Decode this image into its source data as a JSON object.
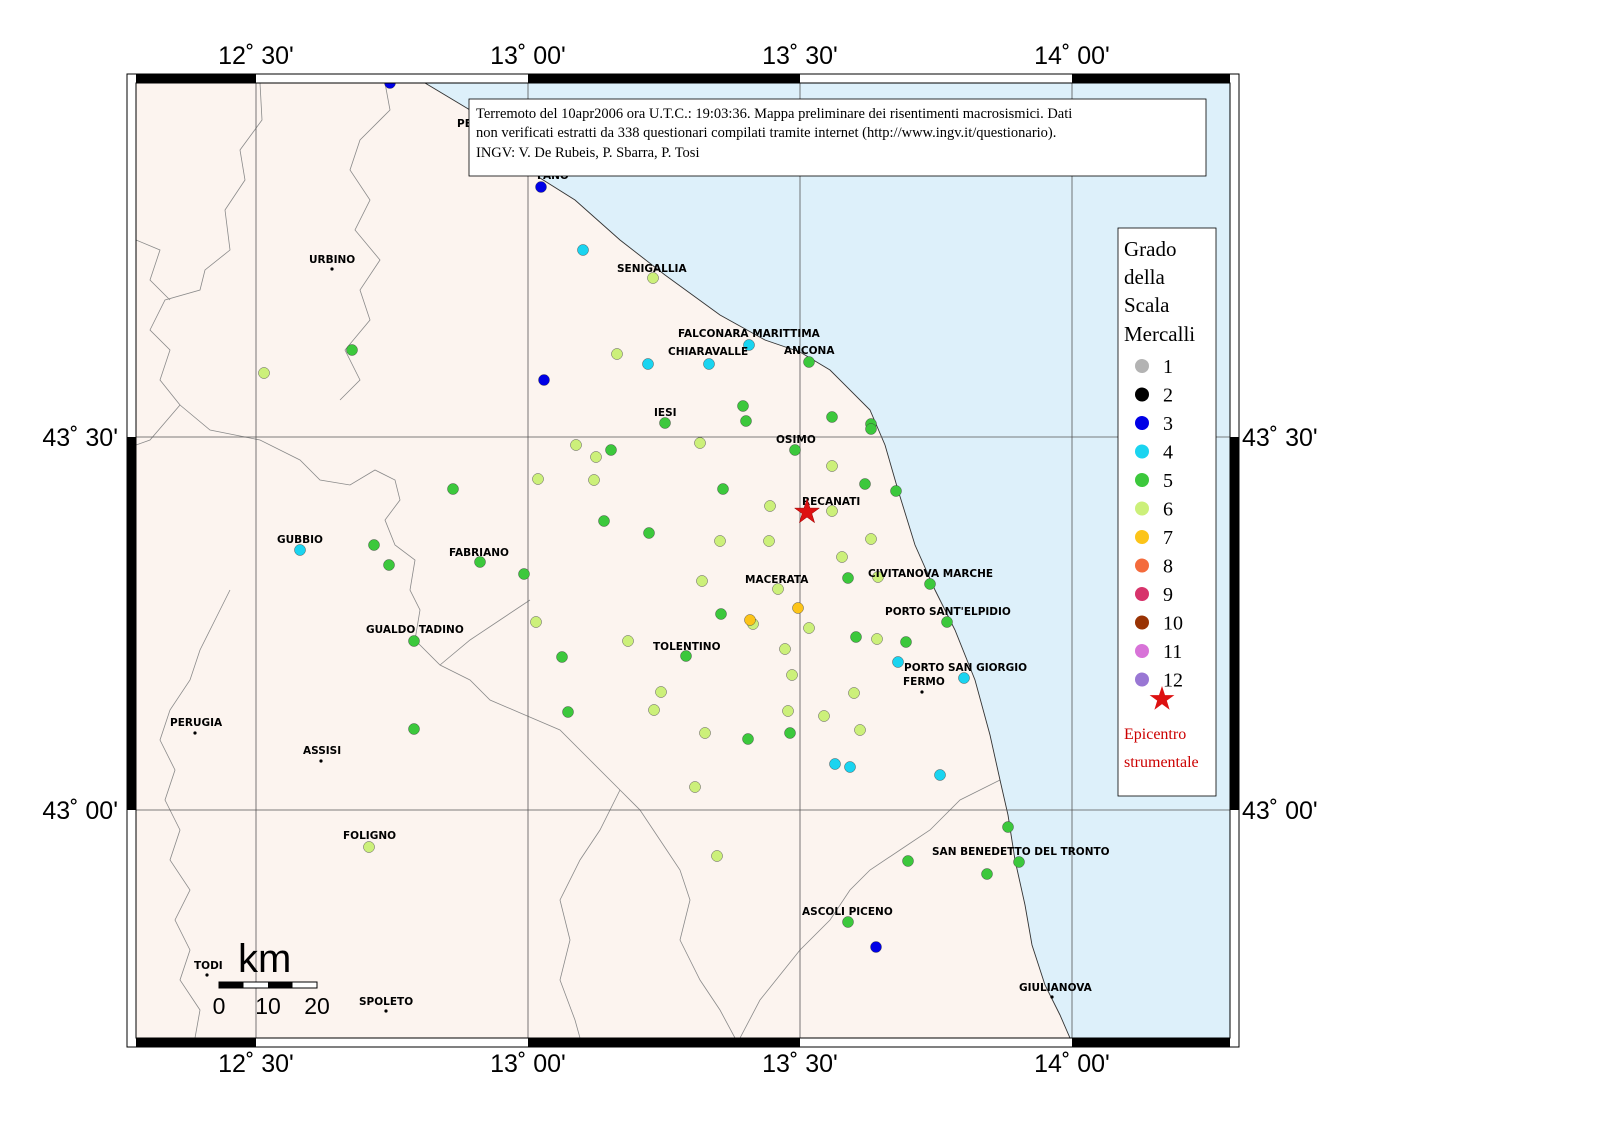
{
  "map": {
    "axis_labels": {
      "longitude": [
        "12˚ 30'",
        "13˚ 00'",
        "13˚ 30'",
        "14˚ 00'"
      ],
      "latitude": [
        "43˚ 30'",
        "43˚ 00'"
      ]
    },
    "info_box": {
      "line1": "Terremoto del 10apr2006 ora U.T.C.: 19:03:36.  Mappa preliminare dei risentimenti macrosismici.  Dati",
      "line2": "non verificati estratti da 338 questionari compilati tramite internet (http://www.ingv.it/questionario).",
      "line3": "INGV: V.  De Rubeis, P.  Sbarra, P.  Tosi"
    },
    "legend": {
      "title_lines": [
        "Grado",
        "della",
        "Scala",
        "Mercalli"
      ],
      "levels": [
        {
          "label": "1",
          "color": "#b3b3b3"
        },
        {
          "label": "2",
          "color": "#000000"
        },
        {
          "label": "3",
          "color": "#0000e6"
        },
        {
          "label": "4",
          "color": "#1ad4f0"
        },
        {
          "label": "5",
          "color": "#3cc83c"
        },
        {
          "label": "6",
          "color": "#ccf07a"
        },
        {
          "label": "7",
          "color": "#fcc419"
        },
        {
          "label": "8",
          "color": "#f46b3c"
        },
        {
          "label": "9",
          "color": "#d7336b"
        },
        {
          "label": "10",
          "color": "#993304"
        },
        {
          "label": "11",
          "color": "#d873d8"
        },
        {
          "label": "12",
          "color": "#9977d4"
        }
      ],
      "epicenter_lines": [
        "Epicentro",
        "strumentale"
      ],
      "epicenter_color": "#dd1111"
    },
    "scale_bar": {
      "unit": "km",
      "ticks": [
        "0",
        "10",
        "20"
      ]
    },
    "cities": [
      {
        "name": "PE"
      },
      {
        "name": "FANO"
      },
      {
        "name": "URBINO"
      },
      {
        "name": "SENIGALLIA"
      },
      {
        "name": "FALCONARA MARITTIMA"
      },
      {
        "name": "CHIARAVALLE"
      },
      {
        "name": "ANCONA"
      },
      {
        "name": "IESI"
      },
      {
        "name": "OSIMO"
      },
      {
        "name": "RECANATI"
      },
      {
        "name": "GUBBIO"
      },
      {
        "name": "FABRIANO"
      },
      {
        "name": "MACERATA"
      },
      {
        "name": "CIVITANOVA MARCHE"
      },
      {
        "name": "PORTO SANT'ELPIDIO"
      },
      {
        "name": "GUALDO TADINO"
      },
      {
        "name": "TOLENTINO"
      },
      {
        "name": "PORTO SAN GIORGIO"
      },
      {
        "name": "FERMO"
      },
      {
        "name": "PERUGIA"
      },
      {
        "name": "ASSISI"
      },
      {
        "name": "FOLIGNO"
      },
      {
        "name": "SAN BENEDETTO DEL TRONTO"
      },
      {
        "name": "ASCOLI PICENO"
      },
      {
        "name": "TODI"
      },
      {
        "name": "SPOLETO"
      },
      {
        "name": "GIULIANOVA"
      }
    ]
  }
}
